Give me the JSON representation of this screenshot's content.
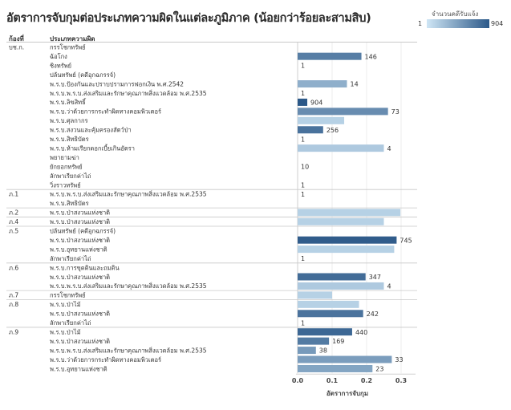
{
  "title": "อัตราการจับกุมต่อประเภทความผิดในแต่ละภูมิภาค (น้อยกว่าร้อยละสามสิบ)",
  "legend": {
    "title": "จำนวนคดีรับแจ้ง",
    "min": "1",
    "max": "904",
    "color_min": "#cfe6f5",
    "color_max": "#2b5888"
  },
  "headers": {
    "region": "ก้องที่",
    "type": "ประเภทความผิด"
  },
  "chart_data": {
    "type": "bar",
    "orientation": "horizontal",
    "x_label": "อัตราการจับกุม",
    "x_ticks": [
      "0.0",
      "0.1",
      "0.2",
      "0.3"
    ],
    "x_range": [
      0,
      0.32
    ],
    "color_encodes": "จำนวนคดีรับแจ้ง",
    "groups": [
      {
        "region": "บช.ก.",
        "rows": [
          {
            "label": "กรรโชกทรัพย์",
            "rate": 0,
            "count": null
          },
          {
            "label": "ฉ้อโกง",
            "rate": 0.185,
            "count": 146
          },
          {
            "label": "ชิงทรัพย์",
            "rate": 0,
            "count": 1
          },
          {
            "label": "ปล้นทรัพย์ (คดีอุกฉกรรจ์)",
            "rate": 0,
            "count": null
          },
          {
            "label": "พ.ร.บ.ป้องกันและปราบปรามการฟอกเงิน พ.ศ.2542",
            "rate": 0.143,
            "count": 14
          },
          {
            "label": "พ.ร.บ.พ.ร.บ.ส่งเสริมและรักษาคุณภาพสิ่งแวดล้อม พ.ศ.2535",
            "rate": 0,
            "count": 1
          },
          {
            "label": "พ.ร.บ.ลิขสิทธิ์",
            "rate": 0.028,
            "count": 904
          },
          {
            "label": "พ.ร.บ.ว่าด้วยการกระทำผิดทางคอมพิวเตอร์",
            "rate": 0.262,
            "count": 73
          },
          {
            "label": "พ.ร.บ.ศุลกากร",
            "rate": 0.135,
            "count": null
          },
          {
            "label": "พ.ร.บ.สงวนและคุ้มครองสัตว์ป่า",
            "rate": 0.074,
            "count": 256
          },
          {
            "label": "พ.ร.บ.สิทธิบัตร",
            "rate": 0,
            "count": 1
          },
          {
            "label": "พ.ร.บ.ห้ามเรียกดอกเบี้ยเกินอัตรา",
            "rate": 0.25,
            "count": 4
          },
          {
            "label": "พยายามฆ่า",
            "rate": 0,
            "count": null
          },
          {
            "label": "ยักยอกทรัพย์",
            "rate": 0,
            "count": 10
          },
          {
            "label": "ลักพาเรียกค่าไถ่",
            "rate": 0,
            "count": null
          },
          {
            "label": "วิ่งราวทรัพย์",
            "rate": 0,
            "count": 1
          }
        ]
      },
      {
        "region": "ภ.1",
        "rows": [
          {
            "label": "พ.ร.บ.พ.ร.บ.ส่งเสริมและรักษาคุณภาพสิ่งแวดล้อม พ.ศ.2535",
            "rate": 0,
            "count": 1
          },
          {
            "label": "พ.ร.บ.สิทธิบัตร",
            "rate": 0,
            "count": null
          }
        ]
      },
      {
        "region": "ภ.2",
        "rows": [
          {
            "label": "พ.ร.บ.ป่าสงวนแห่งชาติ",
            "rate": 0.298,
            "count": null
          }
        ]
      },
      {
        "region": "ภ.4",
        "rows": [
          {
            "label": "พ.ร.บ.ป่าสงวนแห่งชาติ",
            "rate": 0.25,
            "count": null
          }
        ]
      },
      {
        "region": "ภ.5",
        "rows": [
          {
            "label": "ปล้นทรัพย์ (คดีอุกฉกรรจ์)",
            "rate": 0,
            "count": null
          },
          {
            "label": "พ.ร.บ.ป่าสงวนแห่งชาติ",
            "rate": 0.287,
            "count": 745
          },
          {
            "label": "พ.ร.บ.อุทยานแห่งชาติ",
            "rate": 0.28,
            "count": null
          },
          {
            "label": "ลักพาเรียกค่าไถ่",
            "rate": 0,
            "count": 1
          }
        ]
      },
      {
        "region": "ภ.6",
        "rows": [
          {
            "label": "พ.ร.บ.การขุดดินและถมดิน",
            "rate": 0,
            "count": null
          },
          {
            "label": "พ.ร.บ.ป่าสงวนแห่งชาติ",
            "rate": 0.197,
            "count": 347
          },
          {
            "label": "พ.ร.บ.พ.ร.บ.ส่งเสริมและรักษาคุณภาพสิ่งแวดล้อม พ.ศ.2535",
            "rate": 0.25,
            "count": 4
          }
        ]
      },
      {
        "region": "ภ.7",
        "rows": [
          {
            "label": "กรรโชกทรัพย์",
            "rate": 0.1,
            "count": null
          }
        ]
      },
      {
        "region": "ภ.8",
        "rows": [
          {
            "label": "พ.ร.บ.ป่าไม้",
            "rate": 0.178,
            "count": null
          },
          {
            "label": "พ.ร.บ.ป่าสงวนแห่งชาติ",
            "rate": 0.19,
            "count": 242
          },
          {
            "label": "ลักพาเรียกค่าไถ่",
            "rate": 0,
            "count": 1
          }
        ]
      },
      {
        "region": "ภ.9",
        "rows": [
          {
            "label": "พ.ร.บ.ป่าไม้",
            "rate": 0.158,
            "count": 440
          },
          {
            "label": "พ.ร.บ.ป่าสงวนแห่งชาติ",
            "rate": 0.091,
            "count": 169
          },
          {
            "label": "พ.ร.บ.พ.ร.บ.ส่งเสริมและรักษาคุณภาพสิ่งแวดล้อม พ.ศ.2535",
            "rate": 0.053,
            "count": 38
          },
          {
            "label": "พ.ร.บ.ว่าด้วยการกระทำผิดทางคอมพิวเตอร์",
            "rate": 0.273,
            "count": 33
          },
          {
            "label": "พ.ร.บ.อุทยานแห่งชาติ",
            "rate": 0.217,
            "count": 23
          }
        ]
      }
    ]
  }
}
